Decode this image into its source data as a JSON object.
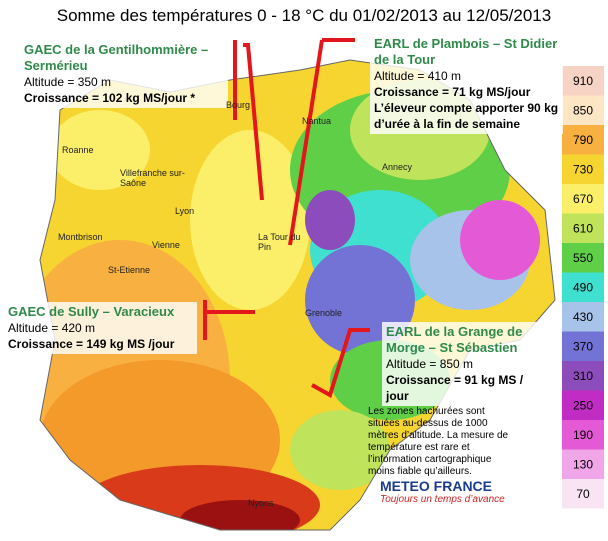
{
  "title": "Somme des températures 0 - 18 °C du 01/02/2013 au 12/05/2013",
  "sites": [
    {
      "name": "GAEC de la Gentilhommière – Sermérieu",
      "altitude": "Altitude = 350 m",
      "growth": "Croissance = 102 kg MS/jour *"
    },
    {
      "name": "EARL de Plambois – St Didier de la Tour",
      "altitude": "Altitude = 410 m",
      "growth": "Croissance = 71 kg MS/jour",
      "note": "L’éleveur compte apporter 90 kg d’urée à la fin de semaine"
    },
    {
      "name": "GAEC de Sully – Varacieux",
      "altitude": "Altitude = 420 m",
      "growth": "Croissance = 149 kg MS /jour"
    },
    {
      "name": "EARL de la Grange de Morge – St Sébastien",
      "altitude": "Altitude = 850 m",
      "growth": "Croissance = 91 kg MS / jour"
    }
  ],
  "places": [
    "Roanne",
    "Villefranche sur-Saône",
    "Lyon",
    "Vienne",
    "Montbrison",
    "St-Etienne",
    "Bourg",
    "Nantua",
    "Annecy",
    "La Tour du Pin",
    "Grenoble",
    "Nyons"
  ],
  "footnote": "Les zones hachurées sont situées au-dessus de 1000 mètres d’altitude. La mesure de température est rare et l’information cartographique moins fiable qu’ailleurs.",
  "logo": {
    "name": "METEO FRANCE",
    "tagline": "Toujours un temps d’avance"
  },
  "legend": [
    {
      "value": 910,
      "color": "#f6d3c4"
    },
    {
      "value": 850,
      "color": "#fde6c4"
    },
    {
      "value": 790,
      "color": "#f8b040"
    },
    {
      "value": 730,
      "color": "#f6d530"
    },
    {
      "value": 670,
      "color": "#fbef6a"
    },
    {
      "value": 610,
      "color": "#bfe35a"
    },
    {
      "value": 550,
      "color": "#5fcf48"
    },
    {
      "value": 490,
      "color": "#3fe0cf"
    },
    {
      "value": 430,
      "color": "#a7c3ea"
    },
    {
      "value": 370,
      "color": "#7373d6"
    },
    {
      "value": 310,
      "color": "#8c4cbc"
    },
    {
      "value": 250,
      "color": "#c02cc4"
    },
    {
      "value": 190,
      "color": "#e45ad6"
    },
    {
      "value": 130,
      "color": "#f2a6ea"
    },
    {
      "value": 70,
      "color": "#f9e4f3"
    }
  ]
}
